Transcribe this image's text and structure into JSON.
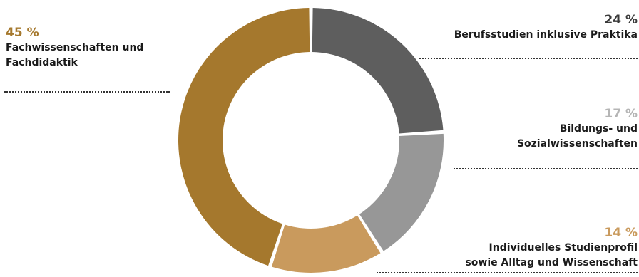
{
  "chart_data": {
    "type": "pie",
    "variant": "donut",
    "categories": [
      "Berufsstudien inklusive Praktika",
      "Bildungs- und Sozialwissenschaften",
      "Individuelles Studienprofil sowie Alltag und Wissenschaft",
      "Fachwissenschaften und Fachdidaktik"
    ],
    "values": [
      24,
      17,
      14,
      45
    ],
    "colors": [
      "#5e5e5e",
      "#979797",
      "#c99a5d",
      "#a5782d"
    ],
    "legend": "none"
  },
  "labels": [
    {
      "pct": "24 %",
      "lines": [
        "Berufsstudien inklusive Praktika"
      ],
      "pct_color": "#3a3a3a"
    },
    {
      "pct": "17 %",
      "lines": [
        "Bildungs- und",
        "Sozialwissenschaften"
      ],
      "pct_color": "#b5b5b5"
    },
    {
      "pct": "14 %",
      "lines": [
        "Individuelles Studienprofil",
        "sowie Alltag und Wissenschaft"
      ],
      "pct_color": "#c99a5d"
    },
    {
      "pct": "45 %",
      "lines": [
        "Fachwissenschaften und",
        "Fachdidaktik"
      ],
      "pct_color": "#a5782d"
    }
  ]
}
